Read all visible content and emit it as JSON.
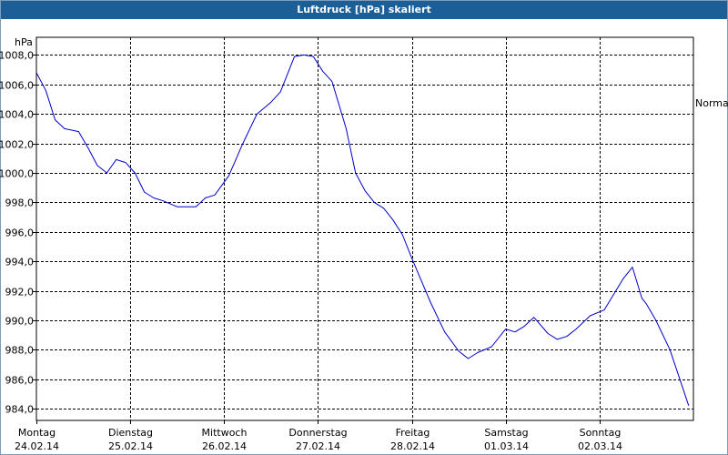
{
  "chart_data": {
    "type": "line",
    "title": "Luftdruck [hPa] skaliert",
    "ylabel": "hPa",
    "ylim": [
      983.2,
      1009.2
    ],
    "yticks": [
      984,
      986,
      988,
      990,
      992,
      994,
      996,
      998,
      1000,
      1002,
      1004,
      1006,
      1008
    ],
    "ytick_labels": [
      "984,0",
      "986,0",
      "988,0",
      "990,0",
      "992,0",
      "994,0",
      "996,0",
      "998,0",
      "1000,0",
      "1002,0",
      "1004,0",
      "1006,0",
      "1008,0"
    ],
    "xlim": [
      0,
      7
    ],
    "xticks": [
      0,
      1,
      2,
      3,
      4,
      5,
      6
    ],
    "xtick_labels": [
      {
        "day": "Montag",
        "date": "24.02.14"
      },
      {
        "day": "Dienstag",
        "date": "25.02.14"
      },
      {
        "day": "Mittwoch",
        "date": "26.02.14"
      },
      {
        "day": "Donnerstag",
        "date": "27.02.14"
      },
      {
        "day": "Freitag",
        "date": "28.02.14"
      },
      {
        "day": "Samstag",
        "date": "01.03.14"
      },
      {
        "day": "Sonntag",
        "date": "02.03.14"
      }
    ],
    "grid": true,
    "reference_line": {
      "label": "Normal",
      "value": 1004.5
    },
    "series": [
      {
        "color": "#0000cc",
        "x": [
          0,
          0.1,
          0.2,
          0.3,
          0.45,
          0.55,
          0.65,
          0.75,
          0.85,
          0.95,
          1.05,
          1.15,
          1.25,
          1.35,
          1.5,
          1.7,
          1.8,
          1.9,
          2.05,
          2.2,
          2.35,
          2.5,
          2.6,
          2.75,
          2.85,
          2.95,
          3.05,
          3.15,
          3.3,
          3.4,
          3.5,
          3.6,
          3.7,
          3.8,
          3.9,
          4.0,
          4.1,
          4.2,
          4.35,
          4.5,
          4.6,
          4.7,
          4.85,
          5.0,
          5.1,
          5.2,
          5.3,
          5.45,
          5.55,
          5.65,
          5.75,
          5.9,
          6.05,
          6.25,
          6.35,
          6.45,
          6.5,
          6.6,
          6.75,
          6.95
        ],
        "values": [
          1006.8,
          1005.6,
          1003.6,
          1003.0,
          1002.8,
          1001.7,
          1000.5,
          1000.0,
          1000.9,
          1000.7,
          1000.0,
          998.7,
          998.3,
          998.1,
          997.7,
          997.7,
          998.3,
          998.5,
          999.8,
          1002.0,
          1004.0,
          1004.8,
          1005.5,
          1007.9,
          1008.0,
          1007.9,
          1006.9,
          1006.2,
          1003.0,
          1000.0,
          998.8,
          998.0,
          997.6,
          996.8,
          995.8,
          994.2,
          992.7,
          991.2,
          989.2,
          987.9,
          987.4,
          987.8,
          988.2,
          989.4,
          989.2,
          989.6,
          990.2,
          989.1,
          988.7,
          988.9,
          989.4,
          990.3,
          990.7,
          992.8,
          993.6,
          991.5,
          991.1,
          990.0,
          988.0,
          984.2
        ]
      }
    ]
  }
}
